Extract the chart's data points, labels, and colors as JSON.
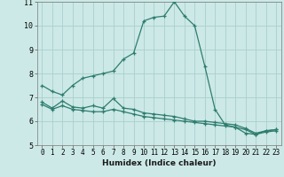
{
  "xlabel": "Humidex (Indice chaleur)",
  "bg_color": "#cce9e7",
  "grid_color": "#aacfcc",
  "line_color": "#2e7d6e",
  "xlim": [
    -0.5,
    23.5
  ],
  "ylim": [
    5,
    11
  ],
  "yticks": [
    5,
    6,
    7,
    8,
    9,
    10,
    11
  ],
  "xticks": [
    0,
    1,
    2,
    3,
    4,
    5,
    6,
    7,
    8,
    9,
    10,
    11,
    12,
    13,
    14,
    15,
    16,
    17,
    18,
    19,
    20,
    21,
    22,
    23
  ],
  "series1_x": [
    0,
    1,
    2,
    3,
    4,
    5,
    6,
    7,
    8,
    9,
    10,
    11,
    12,
    13,
    14,
    15,
    16,
    17,
    18,
    19,
    20,
    21,
    22,
    23
  ],
  "series1_y": [
    7.5,
    7.25,
    7.1,
    7.5,
    7.8,
    7.9,
    8.0,
    8.1,
    8.6,
    8.85,
    10.2,
    10.35,
    10.4,
    11.0,
    10.4,
    10.0,
    8.3,
    6.5,
    5.85,
    5.75,
    5.5,
    5.45,
    5.6,
    5.65
  ],
  "series2_x": [
    0,
    1,
    2,
    3,
    4,
    5,
    6,
    7,
    8,
    9,
    10,
    11,
    12,
    13,
    14,
    15,
    16,
    17,
    18,
    19,
    20,
    21,
    22,
    23
  ],
  "series2_y": [
    6.8,
    6.55,
    6.85,
    6.6,
    6.55,
    6.65,
    6.55,
    6.95,
    6.55,
    6.5,
    6.35,
    6.3,
    6.25,
    6.2,
    6.1,
    6.0,
    6.0,
    5.95,
    5.9,
    5.85,
    5.7,
    5.5,
    5.6,
    5.65
  ],
  "series3_x": [
    0,
    1,
    2,
    3,
    4,
    5,
    6,
    7,
    8,
    9,
    10,
    11,
    12,
    13,
    14,
    15,
    16,
    17,
    18,
    19,
    20,
    21,
    22,
    23
  ],
  "series3_y": [
    6.7,
    6.5,
    6.65,
    6.5,
    6.45,
    6.4,
    6.4,
    6.5,
    6.4,
    6.3,
    6.2,
    6.15,
    6.1,
    6.05,
    6.0,
    5.95,
    5.9,
    5.85,
    5.8,
    5.75,
    5.65,
    5.45,
    5.55,
    5.6
  ],
  "marker": "+",
  "markersize": 3,
  "linewidth": 0.9
}
